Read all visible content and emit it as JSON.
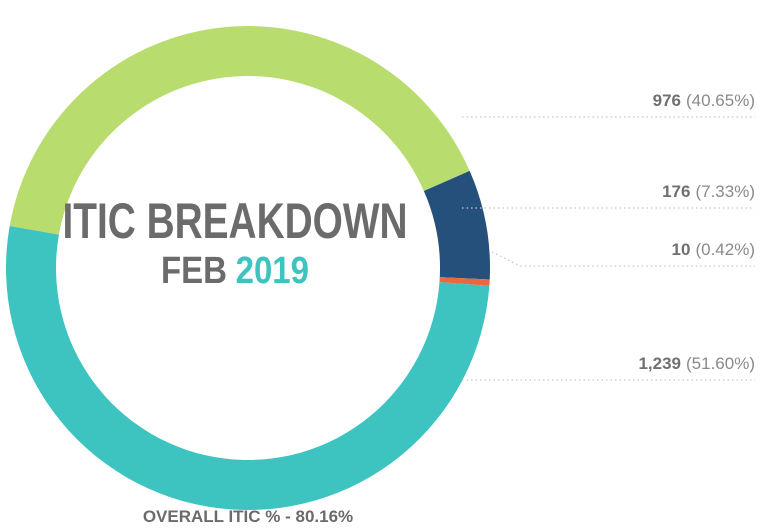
{
  "chart_data": {
    "type": "donut",
    "title": "ITIC BREAKDOWN",
    "subtitle_month": "FEB",
    "subtitle_year": "2019",
    "values": [
      976,
      176,
      10,
      1239
    ],
    "value_labels": [
      "976",
      "176",
      "10",
      "1,239"
    ],
    "percent_labels": [
      "(40.65%)",
      "(7.33%)",
      "(0.42%)",
      "(51.60%)"
    ],
    "colors": [
      "#b8dd6e",
      "#26507c",
      "#e8693f",
      "#3ec4c0"
    ],
    "footer": "OVERALL ITIC % - 80.16%"
  }
}
